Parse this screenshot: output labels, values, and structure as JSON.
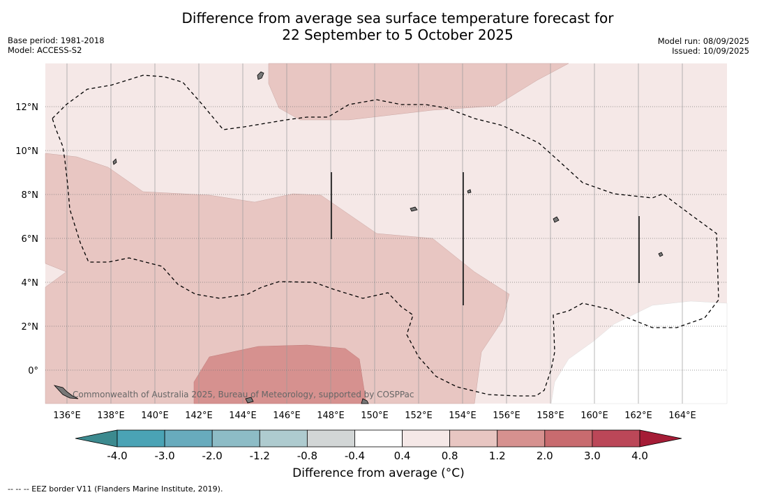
{
  "title_line1": "Difference from average sea surface temperature forecast for",
  "title_line2": "22 September to 5 October 2025",
  "base_period": "Base period: 1981-2018",
  "model": "Model: ACCESS-S2",
  "model_run": "Model run: 08/09/2025",
  "issued": "Issued: 10/09/2025",
  "credit": "Commonwealth of Australia 2025, Bureau of Meteorology, supported by COSPPac",
  "lon_labels": [
    "136°E",
    "138°E",
    "140°E",
    "142°E",
    "144°E",
    "146°E",
    "148°E",
    "150°E",
    "152°E",
    "154°E",
    "156°E",
    "158°E",
    "160°E",
    "162°E",
    "164°E"
  ],
  "lat_labels": [
    "12°N",
    "10°N",
    "8°N",
    "6°N",
    "4°N",
    "2°N",
    "0°"
  ],
  "colorbar": {
    "title": "Difference from average (°C)",
    "labels": [
      "-4.0",
      "-3.0",
      "-2.0",
      "-1.2",
      "-0.8",
      "-0.4",
      "0.4",
      "0.8",
      "1.2",
      "2.0",
      "3.0",
      "4.0"
    ],
    "colors": [
      "#3c8a8f",
      "#4aa3b5",
      "#68abbd",
      "#8dbcc6",
      "#aecbcf",
      "#d2d6d6",
      "#ffffff",
      "#f5e8e7",
      "#e8c6c2",
      "#d6918f",
      "#c86b6f",
      "#bb4758",
      "#a51c36"
    ]
  },
  "footnote": "-- -- -- EEZ border V11 (Flanders Marine Institute, 2019)."
}
